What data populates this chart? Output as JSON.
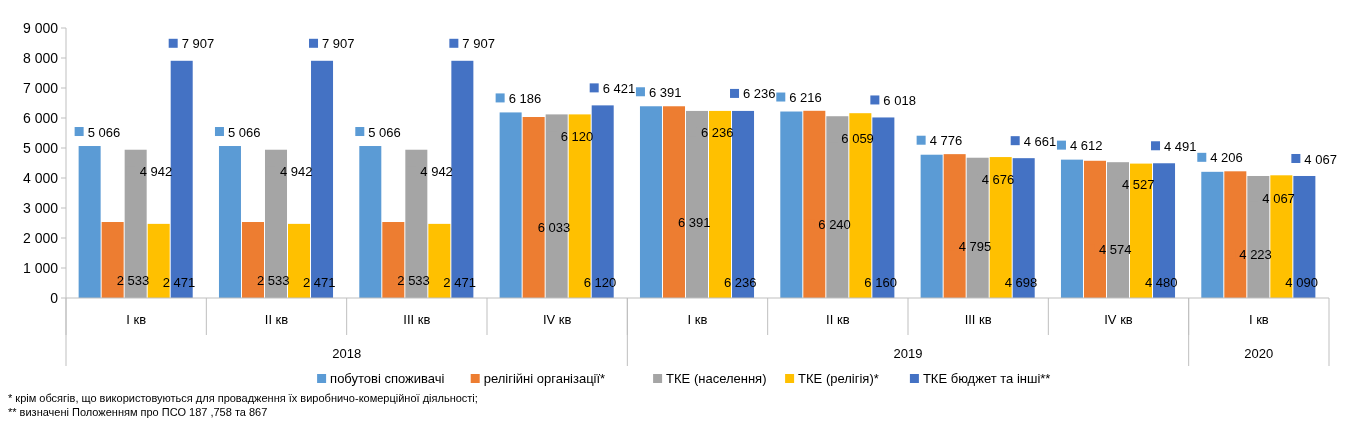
{
  "chart_data": {
    "type": "bar",
    "categories": [
      "I кв",
      "II кв",
      "III кв",
      "IV кв",
      "I кв",
      "II кв",
      "III кв",
      "IV кв",
      "I кв"
    ],
    "ylim": [
      0,
      9000
    ],
    "yticks": [
      {
        "value": 0,
        "label": "0"
      },
      {
        "value": 1000,
        "label": "1 000"
      },
      {
        "value": 2000,
        "label": "2 000"
      },
      {
        "value": 3000,
        "label": "3 000"
      },
      {
        "value": 4000,
        "label": "4 000"
      },
      {
        "value": 5000,
        "label": "5 000"
      },
      {
        "value": 6000,
        "label": "6 000"
      },
      {
        "value": 7000,
        "label": "7 000"
      },
      {
        "value": 8000,
        "label": "8 000"
      },
      {
        "value": 9000,
        "label": "9 000"
      }
    ],
    "grid": false,
    "legend": "bottom",
    "series": [
      {
        "name": "побутові споживачі",
        "color": "#5b9bd5",
        "values": [
          5066,
          5066,
          5066,
          6186,
          6391,
          6216,
          4776,
          4612,
          4206
        ],
        "value_labels": [
          "5 066",
          "5 066",
          "5 066",
          "6 186",
          "6 391",
          "6 216",
          "4 776",
          "4 612",
          "4 206"
        ]
      },
      {
        "name": "релігійні організації*",
        "color": "#ed7d31",
        "values": [
          2533,
          2533,
          2533,
          6033,
          6391,
          6240,
          4795,
          4574,
          4223
        ],
        "value_labels": [
          "2 533",
          "2 533",
          "2 533",
          "6 033",
          "6 391",
          "6 240",
          "4 795",
          "4 574",
          "4 223"
        ]
      },
      {
        "name": "ТКЕ (населення)",
        "color": "#a5a5a5",
        "values": [
          4942,
          4942,
          4942,
          6120,
          6236,
          6059,
          4676,
          4527,
          4067
        ],
        "value_labels": [
          "4 942",
          "4 942",
          "4 942",
          "6 120",
          "6 236",
          "6 059",
          "4 676",
          "4 527",
          "4 067"
        ]
      },
      {
        "name": "ТКЕ (релігія)*",
        "color": "#ffc000",
        "values": [
          2471,
          2471,
          2471,
          6120,
          6236,
          6160,
          4698,
          4480,
          4090
        ],
        "value_labels": [
          "2 471",
          "2 471",
          "2 471",
          "6 120",
          "6 236",
          "6 160",
          "4 698",
          "4 480",
          "4 090"
        ]
      },
      {
        "name": "ТКЕ бюджет та інші**",
        "color": "#4472c4",
        "values": [
          7907,
          7907,
          7907,
          6421,
          6236,
          6018,
          4661,
          4491,
          4067
        ],
        "value_labels": [
          "7 907",
          "7 907",
          "7 907",
          "6 421",
          "6 236",
          "6 018",
          "4 661",
          "4 491",
          "4 067"
        ]
      }
    ],
    "annotations": [
      "2018",
      "2019",
      "2020",
      "* крім обсягів, що використовуються  для провадження  їх виробничо-комерційної  діяльності;",
      "** визначені Положенням  про ПСО 187 ,758 та 867"
    ]
  }
}
